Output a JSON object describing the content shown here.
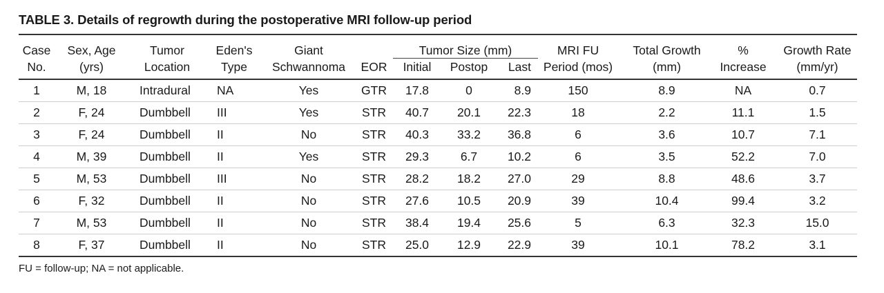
{
  "caption": "TABLE 3. Details of regrowth during the postoperative MRI follow-up period",
  "headers": {
    "case": [
      "Case",
      "No."
    ],
    "sex_age": [
      "Sex, Age",
      "(yrs)"
    ],
    "tumor_location": [
      "Tumor",
      "Location"
    ],
    "edens_type": [
      "Eden's",
      "Type"
    ],
    "giant": [
      "Giant",
      "Schwannoma"
    ],
    "eor": "EOR",
    "tumor_size_group": "Tumor Size (mm)",
    "initial": "Initial",
    "postop": "Postop",
    "last": "Last",
    "mri_fu": [
      "MRI FU",
      "Period (mos)"
    ],
    "total_growth": [
      "Total Growth",
      "(mm)"
    ],
    "pct_increase": [
      "%",
      "Increase"
    ],
    "growth_rate": [
      "Growth Rate",
      "(mm/yr)"
    ]
  },
  "rows": [
    [
      "1",
      "M, 18",
      "Intradural",
      "NA",
      "Yes",
      "GTR",
      "17.8",
      "0",
      "8.9",
      "150",
      "8.9",
      "NA",
      "0.7"
    ],
    [
      "2",
      "F, 24",
      "Dumbbell",
      "III",
      "Yes",
      "STR",
      "40.7",
      "20.1",
      "22.3",
      "18",
      "2.2",
      "11.1",
      "1.5"
    ],
    [
      "3",
      "F, 24",
      "Dumbbell",
      "II",
      "No",
      "STR",
      "40.3",
      "33.2",
      "36.8",
      "6",
      "3.6",
      "10.7",
      "7.1"
    ],
    [
      "4",
      "M, 39",
      "Dumbbell",
      "II",
      "Yes",
      "STR",
      "29.3",
      "6.7",
      "10.2",
      "6",
      "3.5",
      "52.2",
      "7.0"
    ],
    [
      "5",
      "M, 53",
      "Dumbbell",
      "III",
      "No",
      "STR",
      "28.2",
      "18.2",
      "27.0",
      "29",
      "8.8",
      "48.6",
      "3.7"
    ],
    [
      "6",
      "F, 32",
      "Dumbbell",
      "II",
      "No",
      "STR",
      "27.6",
      "10.5",
      "20.9",
      "39",
      "10.4",
      "99.4",
      "3.2"
    ],
    [
      "7",
      "M, 53",
      "Dumbbell",
      "II",
      "No",
      "STR",
      "38.4",
      "19.4",
      "25.6",
      "5",
      "6.3",
      "32.3",
      "15.0"
    ],
    [
      "8",
      "F, 37",
      "Dumbbell",
      "II",
      "No",
      "STR",
      "25.0",
      "12.9",
      "22.9",
      "39",
      "10.1",
      "78.2",
      "3.1"
    ]
  ],
  "footnote": "FU = follow-up; NA = not applicable."
}
